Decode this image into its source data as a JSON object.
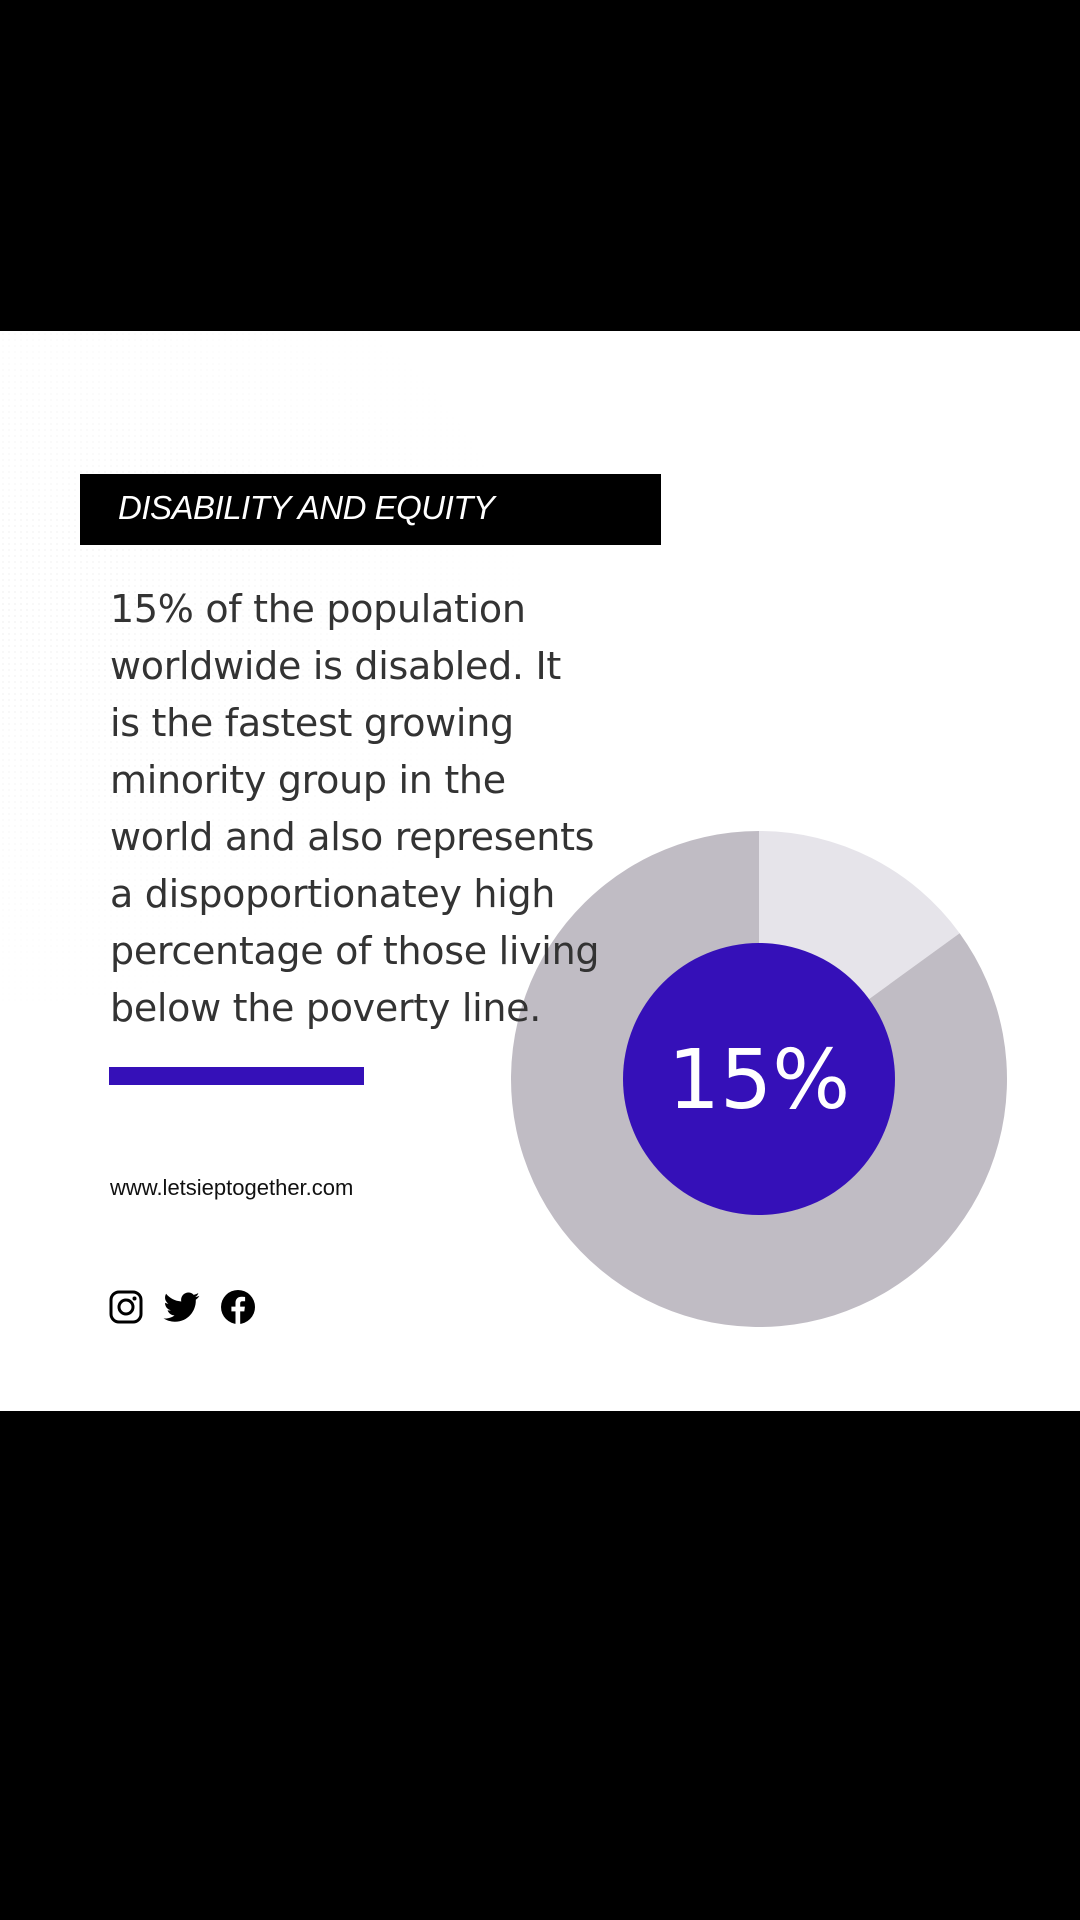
{
  "header": {
    "title": "DISABILITY AND EQUITY"
  },
  "body": {
    "lines": [
      "15% of the population",
      "worldwide is disabled.  It",
      "is the fastest growing",
      "minority group in the",
      "world and also represents",
      "a dispoportionatey high",
      "percentage of those living",
      "below the poverty line."
    ]
  },
  "footer": {
    "website": "www.letsieptogether.com",
    "social_icons": [
      "instagram-icon",
      "twitter-icon",
      "facebook-icon"
    ]
  },
  "colors": {
    "accent": "#3510b8",
    "donut_main": "#c0bcc4",
    "donut_highlight": "#e6e4ea",
    "title_bar": "#000000"
  },
  "chart_data": {
    "type": "pie",
    "variant": "donut",
    "center_label": "15%",
    "slices": [
      {
        "value": 15,
        "color": "#e6e4ea"
      },
      {
        "value": 85,
        "color": "#c0bcc4"
      }
    ]
  }
}
